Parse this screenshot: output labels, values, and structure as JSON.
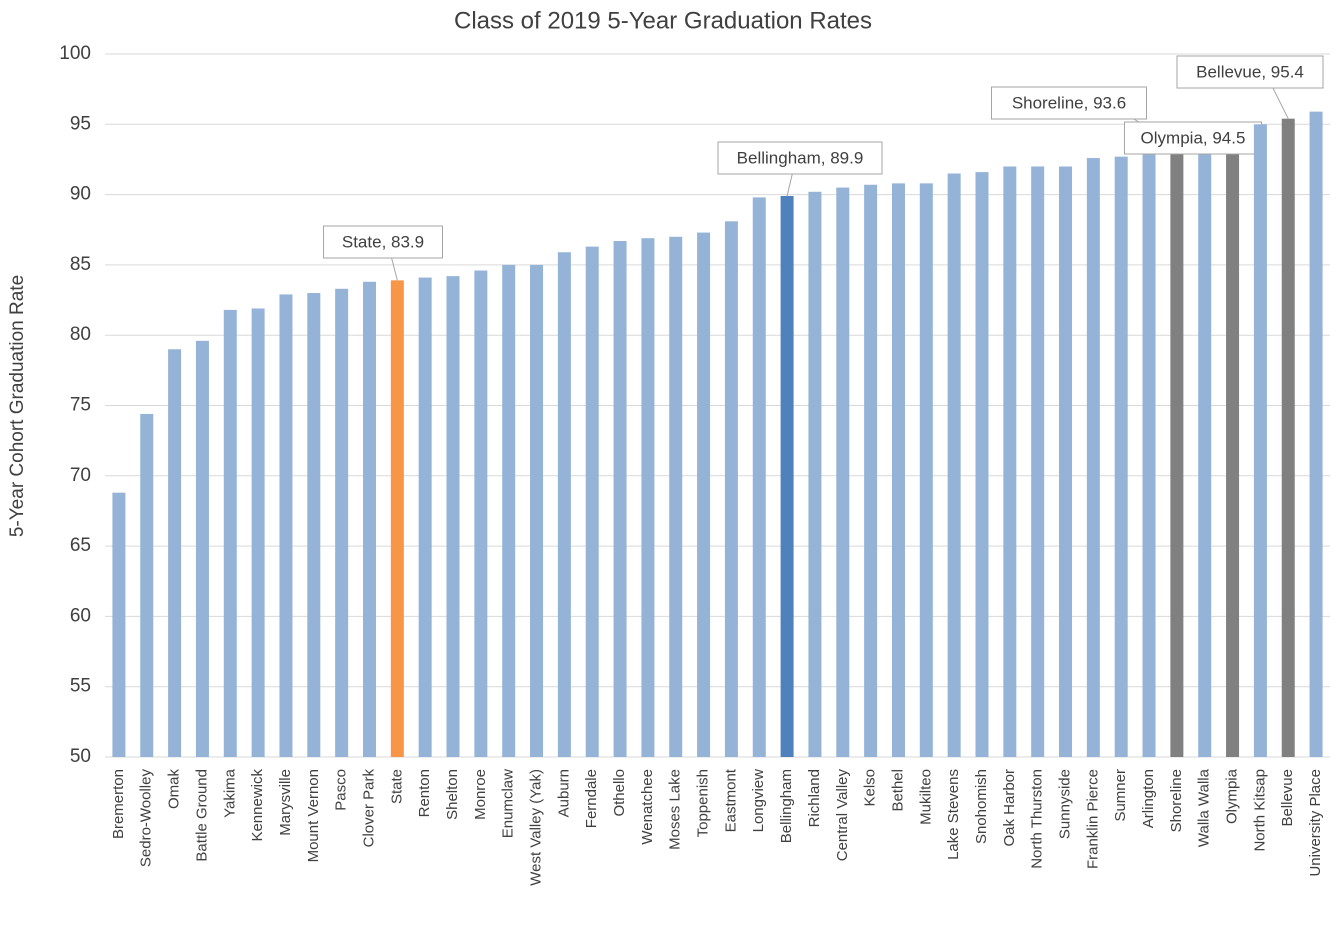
{
  "chart_data": {
    "type": "bar",
    "title": "Class of 2019 5-Year Graduation Rates",
    "y_label": "5-Year Cohort Graduation Rate",
    "categories": [
      "Bremerton",
      "Sedro-Woolley",
      "Omak",
      "Battle Ground",
      "Yakima",
      "Kennewick",
      "Marysville",
      "Mount Vernon",
      "Pasco",
      "Clover Park",
      "State",
      "Renton",
      "Shelton",
      "Monroe",
      "Enumclaw",
      "West Valley (Yak)",
      "Auburn",
      "Ferndale",
      "Othello",
      "Wenatchee",
      "Moses Lake",
      "Toppenish",
      "Eastmont",
      "Longview",
      "Bellingham",
      "Richland",
      "Central Valley",
      "Kelso",
      "Bethel",
      "Mukilteo",
      "Lake Stevens",
      "Snohomish",
      "Oak Harbor",
      "North Thurston",
      "Sunnyside",
      "Franklin Pierce",
      "Sumner",
      "Arlington",
      "Shoreline",
      "Walla Walla",
      "Olympia",
      "North Kitsap",
      "Bellevue",
      "University Place"
    ],
    "values": [
      68.8,
      74.4,
      79.0,
      79.6,
      81.8,
      81.9,
      82.9,
      83.0,
      83.3,
      83.8,
      83.9,
      84.1,
      84.2,
      84.6,
      85.0,
      85.0,
      85.9,
      86.3,
      86.7,
      86.9,
      87.0,
      87.3,
      88.1,
      89.8,
      89.9,
      90.2,
      90.5,
      90.7,
      90.8,
      90.8,
      91.5,
      91.6,
      92.0,
      92.0,
      92.0,
      92.6,
      92.7,
      93.2,
      93.6,
      93.9,
      94.5,
      95.0,
      95.4,
      95.9
    ],
    "value_labels": [
      null,
      null,
      null,
      null,
      null,
      null,
      null,
      null,
      null,
      null,
      "State, 83.9",
      null,
      null,
      null,
      null,
      null,
      null,
      null,
      null,
      null,
      null,
      null,
      null,
      null,
      "Bellingham, 89.9",
      null,
      null,
      null,
      null,
      null,
      null,
      null,
      null,
      null,
      null,
      null,
      null,
      null,
      "Shoreline, 93.6",
      null,
      "Olympia, 94.5",
      null,
      "Bellevue, 95.4",
      null
    ],
    "colors": [
      "#95b3d7",
      "#95b3d7",
      "#95b3d7",
      "#95b3d7",
      "#95b3d7",
      "#95b3d7",
      "#95b3d7",
      "#95b3d7",
      "#95b3d7",
      "#95b3d7",
      "#f79646",
      "#95b3d7",
      "#95b3d7",
      "#95b3d7",
      "#95b3d7",
      "#95b3d7",
      "#95b3d7",
      "#95b3d7",
      "#95b3d7",
      "#95b3d7",
      "#95b3d7",
      "#95b3d7",
      "#95b3d7",
      "#95b3d7",
      "#4f81bd",
      "#95b3d7",
      "#95b3d7",
      "#95b3d7",
      "#95b3d7",
      "#95b3d7",
      "#95b3d7",
      "#95b3d7",
      "#95b3d7",
      "#95b3d7",
      "#95b3d7",
      "#95b3d7",
      "#95b3d7",
      "#95b3d7",
      "#808080",
      "#95b3d7",
      "#808080",
      "#95b3d7",
      "#808080",
      "#95b3d7"
    ],
    "ylim": [
      50,
      100
    ],
    "yticks": [
      50,
      55,
      60,
      65,
      70,
      75,
      80,
      85,
      90,
      95,
      100
    ],
    "grid": true
  }
}
